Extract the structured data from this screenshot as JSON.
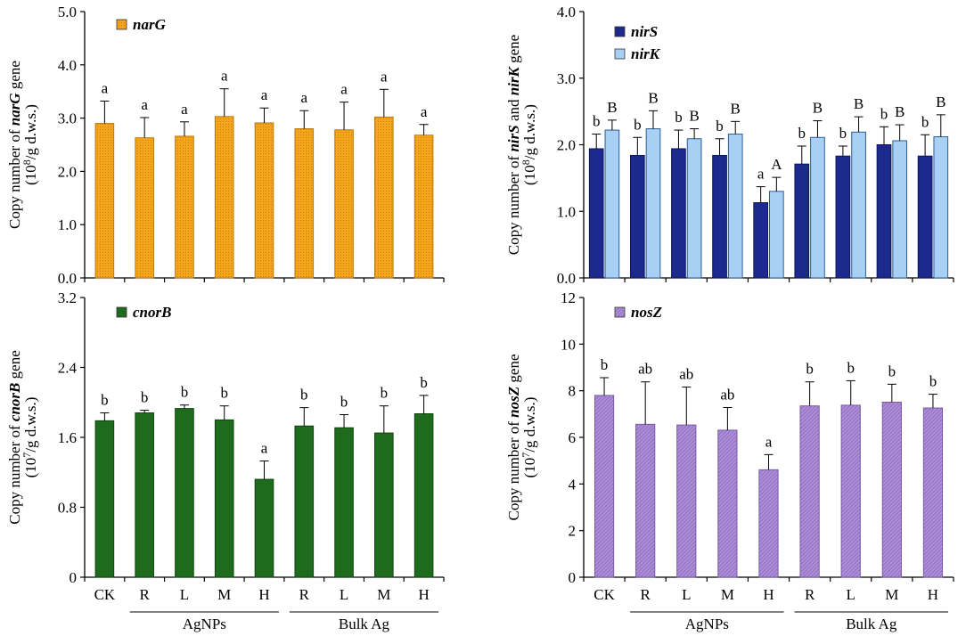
{
  "colors": {
    "narG": "#f3a51c",
    "nirS": "#1b2a8c",
    "nirK": "#a8d0f4",
    "cnorB": "#1e6b1e",
    "nosZ": "#a98bd1"
  },
  "x_groups": [
    {
      "label": "AgNPs",
      "from": 1,
      "to": 4
    },
    {
      "label": "Bulk Ag",
      "from": 5,
      "to": 8
    }
  ],
  "chart_data": [
    {
      "type": "bar",
      "panel": "narG",
      "categories": [
        "",
        "",
        "",
        "",
        "",
        "",
        "",
        "",
        ""
      ],
      "series": [
        {
          "name": "narG",
          "color_key": "narG",
          "values": [
            2.9,
            2.63,
            2.66,
            3.03,
            2.91,
            2.8,
            2.78,
            3.02,
            2.68
          ],
          "errors": [
            0.42,
            0.38,
            0.27,
            0.52,
            0.28,
            0.34,
            0.52,
            0.52,
            0.2
          ],
          "labels": [
            "a",
            "a",
            "a",
            "a",
            "a",
            "a",
            "a",
            "a",
            "a"
          ]
        }
      ],
      "ylim": [
        0,
        5
      ],
      "yticks": [
        "0.0",
        "1.0",
        "2.0",
        "3.0",
        "4.0",
        "5.0"
      ],
      "ylabel_prefix": "Copy number of ",
      "ylabel_gene": "narG",
      "ylabel_suffix": " gene",
      "ylabel_unit_a": "(10",
      "ylabel_unit_exp": "8",
      "ylabel_unit_b": "/g d.w.s.)",
      "legend": [
        "narG"
      ]
    },
    {
      "type": "bar",
      "panel": "nirS-nirK",
      "categories": [
        "",
        "",
        "",
        "",
        "",
        "",
        "",
        "",
        ""
      ],
      "series": [
        {
          "name": "nirS",
          "color_key": "nirS",
          "values": [
            1.94,
            1.84,
            1.94,
            1.84,
            1.13,
            1.71,
            1.83,
            2.0,
            1.83
          ],
          "errors": [
            0.22,
            0.27,
            0.28,
            0.25,
            0.24,
            0.27,
            0.15,
            0.27,
            0.32
          ],
          "labels": [
            "b",
            "b",
            "b",
            "b",
            "a",
            "b",
            "b",
            "b",
            "b"
          ]
        },
        {
          "name": "nirK",
          "color_key": "nirK",
          "values": [
            2.22,
            2.24,
            2.09,
            2.16,
            1.3,
            2.11,
            2.19,
            2.06,
            2.12
          ],
          "errors": [
            0.15,
            0.27,
            0.15,
            0.19,
            0.21,
            0.25,
            0.23,
            0.24,
            0.33
          ],
          "labels": [
            "B",
            "B",
            "B",
            "B",
            "A",
            "B",
            "B",
            "B",
            "B"
          ]
        }
      ],
      "ylim": [
        0,
        4
      ],
      "yticks": [
        "0.0",
        "1.0",
        "2.0",
        "3.0",
        "4.0"
      ],
      "ylabel_prefix": "Copy number of ",
      "ylabel_gene": "nirS",
      "ylabel_mid": " and ",
      "ylabel_gene2": "nirK",
      "ylabel_suffix": " gene",
      "ylabel_unit_a": "(10",
      "ylabel_unit_exp": "8",
      "ylabel_unit_b": "/g d.w.s.)",
      "legend": [
        "nirS",
        "nirK"
      ]
    },
    {
      "type": "bar",
      "panel": "cnorB",
      "categories": [
        "CK",
        "R",
        "L",
        "M",
        "H",
        "R",
        "L",
        "M",
        "H"
      ],
      "series": [
        {
          "name": "cnorB",
          "color_key": "cnorB",
          "values": [
            1.79,
            1.88,
            1.93,
            1.8,
            1.12,
            1.73,
            1.71,
            1.65,
            1.87
          ],
          "errors": [
            0.09,
            0.03,
            0.04,
            0.16,
            0.21,
            0.21,
            0.15,
            0.31,
            0.21
          ],
          "labels": [
            "b",
            "b",
            "b",
            "b",
            "a",
            "b",
            "b",
            "b",
            "b"
          ]
        }
      ],
      "ylim": [
        0,
        3.2
      ],
      "yticks": [
        "0",
        "0.8",
        "1.6",
        "2.4",
        "3.2"
      ],
      "ylabel_prefix": "Copy number of ",
      "ylabel_gene": "cnorB",
      "ylabel_suffix": " gene",
      "ylabel_unit_a": "(10",
      "ylabel_unit_exp": "7",
      "ylabel_unit_b": "/g d.w.s.)",
      "legend": [
        "cnorB"
      ]
    },
    {
      "type": "bar",
      "panel": "nosZ",
      "categories": [
        "CK",
        "R",
        "L",
        "M",
        "H",
        "R",
        "L",
        "M",
        "H"
      ],
      "series": [
        {
          "name": "nosZ",
          "color_key": "nosZ",
          "values": [
            7.8,
            6.56,
            6.53,
            6.31,
            4.61,
            7.35,
            7.38,
            7.51,
            7.26
          ],
          "errors": [
            0.76,
            1.82,
            1.63,
            0.97,
            0.65,
            1.03,
            1.05,
            0.77,
            0.59
          ],
          "labels": [
            "b",
            "ab",
            "ab",
            "ab",
            "a",
            "b",
            "b",
            "b",
            "b"
          ]
        }
      ],
      "ylim": [
        0,
        12
      ],
      "yticks": [
        "0",
        "2",
        "4",
        "6",
        "8",
        "10",
        "12"
      ],
      "ylabel_prefix": "Copy number of ",
      "ylabel_gene": "nosZ",
      "ylabel_suffix": " gene",
      "ylabel_unit_a": "(10",
      "ylabel_unit_exp": "7",
      "ylabel_unit_b": "/g d.w.s.)",
      "legend": [
        "nosZ"
      ]
    }
  ]
}
